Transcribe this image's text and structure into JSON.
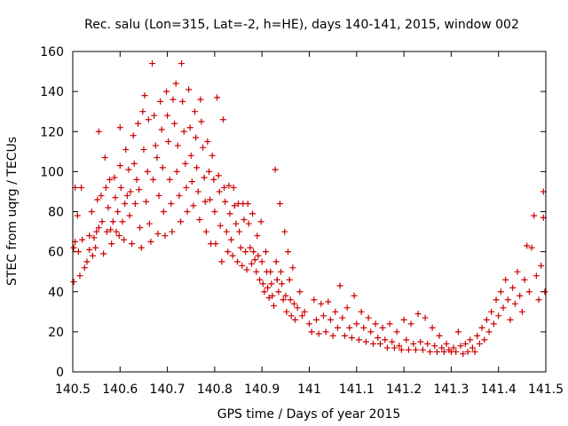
{
  "chart_data": {
    "type": "scatter",
    "title": "Rec. salu (Lon=315, Lat=-2, h=HE), days 140-141, 2015, window 002",
    "xlabel": "GPS time / Days of year 2015",
    "ylabel": "STEC from uqrg / TECUs",
    "xlim": [
      140.5,
      141.5
    ],
    "ylim": [
      0,
      160
    ],
    "xticks": [
      "140.5",
      "140.6",
      "140.7",
      "140.8",
      "140.9",
      "141",
      "141.1",
      "141.2",
      "141.3",
      "141.4",
      "141.5"
    ],
    "yticks": [
      "0",
      "20",
      "40",
      "60",
      "80",
      "100",
      "120",
      "140",
      "160"
    ],
    "grid": false,
    "marker": "+",
    "color": "#cc0000",
    "series": [
      {
        "points": [
          [
            140.502,
            62
          ],
          [
            140.502,
            45
          ],
          [
            140.505,
            65
          ],
          [
            140.505,
            92
          ],
          [
            140.51,
            78
          ],
          [
            140.512,
            60
          ],
          [
            140.515,
            48
          ],
          [
            140.518,
            92
          ],
          [
            140.52,
            66
          ],
          [
            140.525,
            52
          ],
          [
            140.53,
            55
          ],
          [
            140.535,
            61
          ],
          [
            140.535,
            68
          ],
          [
            140.54,
            80
          ],
          [
            140.542,
            58
          ],
          [
            140.545,
            67
          ],
          [
            140.548,
            62
          ],
          [
            140.55,
            70
          ],
          [
            140.552,
            86
          ],
          [
            140.555,
            120
          ],
          [
            140.555,
            72
          ],
          [
            140.56,
            88
          ],
          [
            140.562,
            75
          ],
          [
            140.565,
            59
          ],
          [
            140.568,
            107
          ],
          [
            140.57,
            92
          ],
          [
            140.572,
            70
          ],
          [
            140.575,
            82
          ],
          [
            140.578,
            96
          ],
          [
            140.58,
            71
          ],
          [
            140.582,
            64
          ],
          [
            140.585,
            75
          ],
          [
            140.588,
            97
          ],
          [
            140.59,
            87
          ],
          [
            140.592,
            70
          ],
          [
            140.595,
            80
          ],
          [
            140.598,
            68
          ],
          [
            140.6,
            122
          ],
          [
            140.6,
            103
          ],
          [
            140.602,
            92
          ],
          [
            140.605,
            75
          ],
          [
            140.608,
            66
          ],
          [
            140.61,
            84
          ],
          [
            140.612,
            111
          ],
          [
            140.615,
            88
          ],
          [
            140.618,
            101
          ],
          [
            140.62,
            78
          ],
          [
            140.622,
            90
          ],
          [
            140.625,
            64
          ],
          [
            140.628,
            118
          ],
          [
            140.63,
            104
          ],
          [
            140.632,
            84
          ],
          [
            140.635,
            96
          ],
          [
            140.638,
            124
          ],
          [
            140.64,
            91
          ],
          [
            140.642,
            72
          ],
          [
            140.645,
            62
          ],
          [
            140.648,
            130
          ],
          [
            140.65,
            111
          ],
          [
            140.652,
            138
          ],
          [
            140.655,
            85
          ],
          [
            140.658,
            100
          ],
          [
            140.66,
            126
          ],
          [
            140.662,
            74
          ],
          [
            140.665,
            65
          ],
          [
            140.668,
            154
          ],
          [
            140.67,
            96
          ],
          [
            140.672,
            128
          ],
          [
            140.675,
            113
          ],
          [
            140.678,
            107
          ],
          [
            140.68,
            69
          ],
          [
            140.682,
            88
          ],
          [
            140.685,
            135
          ],
          [
            140.688,
            121
          ],
          [
            140.69,
            102
          ],
          [
            140.692,
            80
          ],
          [
            140.695,
            68
          ],
          [
            140.698,
            140
          ],
          [
            140.7,
            128
          ],
          [
            140.702,
            115
          ],
          [
            140.705,
            96
          ],
          [
            140.708,
            84
          ],
          [
            140.71,
            70
          ],
          [
            140.712,
            136
          ],
          [
            140.715,
            124
          ],
          [
            140.718,
            144
          ],
          [
            140.72,
            100
          ],
          [
            140.722,
            113
          ],
          [
            140.725,
            88
          ],
          [
            140.728,
            75
          ],
          [
            140.73,
            154
          ],
          [
            140.732,
            135
          ],
          [
            140.735,
            120
          ],
          [
            140.738,
            104
          ],
          [
            140.74,
            92
          ],
          [
            140.742,
            80
          ],
          [
            140.745,
            141
          ],
          [
            140.748,
            122
          ],
          [
            140.75,
            108
          ],
          [
            140.752,
            95
          ],
          [
            140.755,
            83
          ],
          [
            140.758,
            130
          ],
          [
            140.76,
            117
          ],
          [
            140.762,
            102
          ],
          [
            140.765,
            90
          ],
          [
            140.768,
            76
          ],
          [
            140.77,
            136
          ],
          [
            140.772,
            125
          ],
          [
            140.775,
            112
          ],
          [
            140.778,
            97
          ],
          [
            140.78,
            85
          ],
          [
            140.782,
            70
          ],
          [
            140.785,
            115
          ],
          [
            140.788,
            100
          ],
          [
            140.79,
            86
          ],
          [
            140.792,
            64
          ],
          [
            140.795,
            108
          ],
          [
            140.798,
            96
          ],
          [
            140.8,
            80
          ],
          [
            140.802,
            64
          ],
          [
            140.805,
            137
          ],
          [
            140.808,
            98
          ],
          [
            140.81,
            90
          ],
          [
            140.812,
            73
          ],
          [
            140.815,
            55
          ],
          [
            140.818,
            126
          ],
          [
            140.82,
            92
          ],
          [
            140.822,
            85
          ],
          [
            140.825,
            70
          ],
          [
            140.828,
            60
          ],
          [
            140.83,
            93
          ],
          [
            140.832,
            79
          ],
          [
            140.835,
            66
          ],
          [
            140.838,
            58
          ],
          [
            140.84,
            92
          ],
          [
            140.842,
            83
          ],
          [
            140.845,
            74
          ],
          [
            140.848,
            55
          ],
          [
            140.85,
            84
          ],
          [
            140.852,
            70
          ],
          [
            140.855,
            62
          ],
          [
            140.858,
            53
          ],
          [
            140.86,
            84
          ],
          [
            140.862,
            76
          ],
          [
            140.865,
            60
          ],
          [
            140.868,
            51
          ],
          [
            140.87,
            84
          ],
          [
            140.872,
            74
          ],
          [
            140.875,
            62
          ],
          [
            140.878,
            54
          ],
          [
            140.88,
            79
          ],
          [
            140.882,
            60
          ],
          [
            140.885,
            56
          ],
          [
            140.888,
            50
          ],
          [
            140.89,
            68
          ],
          [
            140.892,
            58
          ],
          [
            140.895,
            46
          ],
          [
            140.898,
            75
          ],
          [
            140.9,
            55
          ],
          [
            140.902,
            44
          ],
          [
            140.905,
            40
          ],
          [
            140.908,
            60
          ],
          [
            140.91,
            50
          ],
          [
            140.912,
            42
          ],
          [
            140.915,
            37
          ],
          [
            140.918,
            50
          ],
          [
            140.92,
            44
          ],
          [
            140.922,
            38
          ],
          [
            140.925,
            33
          ],
          [
            140.928,
            101
          ],
          [
            140.93,
            55
          ],
          [
            140.932,
            46
          ],
          [
            140.935,
            40
          ],
          [
            140.938,
            84
          ],
          [
            140.94,
            50
          ],
          [
            140.942,
            44
          ],
          [
            140.945,
            36
          ],
          [
            140.948,
            70
          ],
          [
            140.95,
            38
          ],
          [
            140.952,
            30
          ],
          [
            140.955,
            60
          ],
          [
            140.958,
            46
          ],
          [
            140.96,
            36
          ],
          [
            140.962,
            28
          ],
          [
            140.965,
            52
          ],
          [
            140.968,
            34
          ],
          [
            140.97,
            26
          ],
          [
            140.975,
            32
          ],
          [
            140.98,
            40
          ],
          [
            140.985,
            28
          ],
          [
            140.99,
            30
          ],
          [
            141.0,
            24
          ],
          [
            141.005,
            20
          ],
          [
            141.01,
            36
          ],
          [
            141.015,
            26
          ],
          [
            141.02,
            19
          ],
          [
            141.025,
            34
          ],
          [
            141.03,
            28
          ],
          [
            141.035,
            20
          ],
          [
            141.04,
            35
          ],
          [
            141.045,
            26
          ],
          [
            141.05,
            18
          ],
          [
            141.055,
            30
          ],
          [
            141.06,
            22
          ],
          [
            141.065,
            43
          ],
          [
            141.07,
            27
          ],
          [
            141.075,
            18
          ],
          [
            141.08,
            32
          ],
          [
            141.085,
            22
          ],
          [
            141.09,
            17
          ],
          [
            141.095,
            38
          ],
          [
            141.1,
            24
          ],
          [
            141.105,
            16
          ],
          [
            141.11,
            30
          ],
          [
            141.115,
            22
          ],
          [
            141.12,
            15
          ],
          [
            141.125,
            27
          ],
          [
            141.13,
            20
          ],
          [
            141.135,
            14
          ],
          [
            141.14,
            24
          ],
          [
            141.145,
            17
          ],
          [
            141.15,
            14
          ],
          [
            141.155,
            22
          ],
          [
            141.16,
            16
          ],
          [
            141.165,
            12
          ],
          [
            141.17,
            24
          ],
          [
            141.175,
            15
          ],
          [
            141.18,
            12
          ],
          [
            141.185,
            20
          ],
          [
            141.19,
            13
          ],
          [
            141.195,
            11
          ],
          [
            141.2,
            26
          ],
          [
            141.205,
            16
          ],
          [
            141.21,
            11
          ],
          [
            141.215,
            24
          ],
          [
            141.22,
            14
          ],
          [
            141.225,
            11
          ],
          [
            141.23,
            29
          ],
          [
            141.235,
            15
          ],
          [
            141.24,
            11
          ],
          [
            141.245,
            27
          ],
          [
            141.25,
            14
          ],
          [
            141.255,
            10
          ],
          [
            141.26,
            22
          ],
          [
            141.265,
            13
          ],
          [
            141.27,
            10
          ],
          [
            141.275,
            18
          ],
          [
            141.28,
            12
          ],
          [
            141.285,
            10
          ],
          [
            141.29,
            14
          ],
          [
            141.295,
            11
          ],
          [
            141.3,
            10
          ],
          [
            141.305,
            12
          ],
          [
            141.31,
            10
          ],
          [
            141.315,
            20
          ],
          [
            141.32,
            13
          ],
          [
            141.325,
            9
          ],
          [
            141.33,
            14
          ],
          [
            141.335,
            10
          ],
          [
            141.34,
            16
          ],
          [
            141.345,
            12
          ],
          [
            141.35,
            10
          ],
          [
            141.355,
            18
          ],
          [
            141.36,
            14
          ],
          [
            141.365,
            22
          ],
          [
            141.37,
            16
          ],
          [
            141.375,
            26
          ],
          [
            141.38,
            20
          ],
          [
            141.385,
            30
          ],
          [
            141.39,
            24
          ],
          [
            141.395,
            36
          ],
          [
            141.4,
            28
          ],
          [
            141.405,
            40
          ],
          [
            141.41,
            32
          ],
          [
            141.415,
            46
          ],
          [
            141.42,
            36
          ],
          [
            141.425,
            26
          ],
          [
            141.43,
            42
          ],
          [
            141.435,
            34
          ],
          [
            141.44,
            50
          ],
          [
            141.445,
            38
          ],
          [
            141.45,
            30
          ],
          [
            141.455,
            46
          ],
          [
            141.46,
            63
          ],
          [
            141.465,
            40
          ],
          [
            141.47,
            62
          ],
          [
            141.475,
            78
          ],
          [
            141.48,
            48
          ],
          [
            141.485,
            36
          ],
          [
            141.49,
            53
          ],
          [
            141.495,
            77
          ],
          [
            141.495,
            90
          ],
          [
            141.498,
            40
          ]
        ]
      }
    ]
  }
}
